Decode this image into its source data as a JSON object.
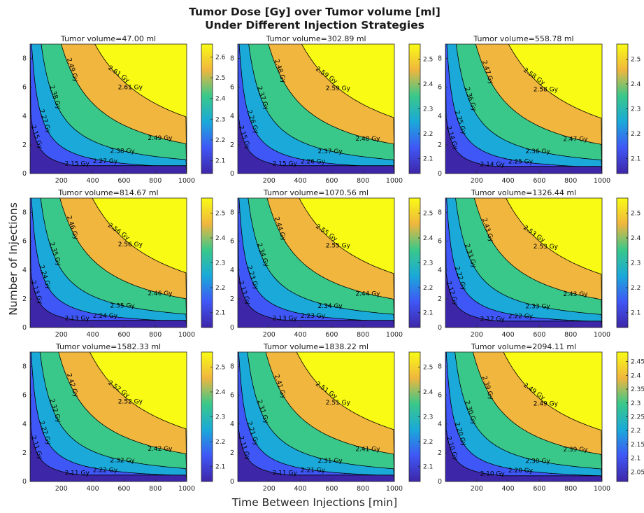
{
  "figure": {
    "title_line1": "Tumor Dose [Gy] over Tumor volume [ml]",
    "title_line2": "Under Different Injection Strategies",
    "ylabel": "Number of Injections",
    "xlabel": "Time Between Injections [min]"
  },
  "chart_data": {
    "type": "contour",
    "x_ticks": [
      200,
      400,
      600,
      800,
      1000
    ],
    "y_ticks": [
      0,
      2,
      4,
      6,
      8
    ],
    "xlim": [
      0,
      1000
    ],
    "ylim": [
      0,
      9
    ],
    "fill_colors": [
      "#3e26a8",
      "#3f57f6",
      "#1aa9d9",
      "#3ac88a",
      "#f0b63e",
      "#f9fb15"
    ],
    "panels": [
      {
        "title": "Tumor volume=47.00 ml",
        "levels": [
          "2.15 Gy",
          "2.27 Gy",
          "2.38 Gy",
          "2.49 Gy",
          "2.61 Gy"
        ],
        "colorbar_ticks": [
          "2.1",
          "2.2",
          "2.3",
          "2.4",
          "2.5",
          "2.6"
        ]
      },
      {
        "title": "Tumor volume=302.89 ml",
        "levels": [
          "2.15 Gy",
          "2.26 Gy",
          "2.37 Gy",
          "2.48 Gy",
          "2.59 Gy"
        ],
        "colorbar_ticks": [
          "2.1",
          "2.2",
          "2.3",
          "2.4",
          "2.5"
        ]
      },
      {
        "title": "Tumor volume=558.78 ml",
        "levels": [
          "2.14 Gy",
          "2.25 Gy",
          "2.36 Gy",
          "2.47 Gy",
          "2.58 Gy"
        ],
        "colorbar_ticks": [
          "2.1",
          "2.2",
          "2.3",
          "2.4",
          "2.5"
        ]
      },
      {
        "title": "Tumor volume=814.67 ml",
        "levels": [
          "2.13 Gy",
          "2.24 Gy",
          "2.35 Gy",
          "2.46 Gy",
          "2.56 Gy"
        ],
        "colorbar_ticks": [
          "2.1",
          "2.2",
          "2.3",
          "2.4",
          "2.5"
        ]
      },
      {
        "title": "Tumor volume=1070.56 ml",
        "levels": [
          "2.13 Gy",
          "2.23 Gy",
          "2.34 Gy",
          "2.44 Gy",
          "2.55 Gy"
        ],
        "colorbar_ticks": [
          "2.1",
          "2.2",
          "2.3",
          "2.4",
          "2.5"
        ]
      },
      {
        "title": "Tumor volume=1326.44 ml",
        "levels": [
          "2.12 Gy",
          "2.22 Gy",
          "2.33 Gy",
          "2.43 Gy",
          "2.53 Gy"
        ],
        "colorbar_ticks": [
          "2.1",
          "2.2",
          "2.3",
          "2.4",
          "2.5"
        ]
      },
      {
        "title": "Tumor volume=1582.33 ml",
        "levels": [
          "2.11 Gy",
          "2.22 Gy",
          "2.32 Gy",
          "2.42 Gy",
          "2.52 Gy"
        ],
        "colorbar_ticks": [
          "2.1",
          "2.2",
          "2.3",
          "2.4",
          "2.5"
        ]
      },
      {
        "title": "Tumor volume=1838.22 ml",
        "levels": [
          "2.11 Gy",
          "2.21 Gy",
          "2.31 Gy",
          "2.41 Gy",
          "2.51 Gy"
        ],
        "colorbar_ticks": [
          "2.1",
          "2.2",
          "2.3",
          "2.4",
          "2.5"
        ]
      },
      {
        "title": "Tumor volume=2094.11 ml",
        "levels": [
          "2.10 Gy",
          "2.20 Gy",
          "2.30 Gy",
          "2.39 Gy",
          "2.49 Gy"
        ],
        "colorbar_ticks": [
          "2.05",
          "2.1",
          "2.15",
          "2.2",
          "2.25",
          "2.3",
          "2.35",
          "2.4",
          "2.45"
        ]
      }
    ]
  }
}
